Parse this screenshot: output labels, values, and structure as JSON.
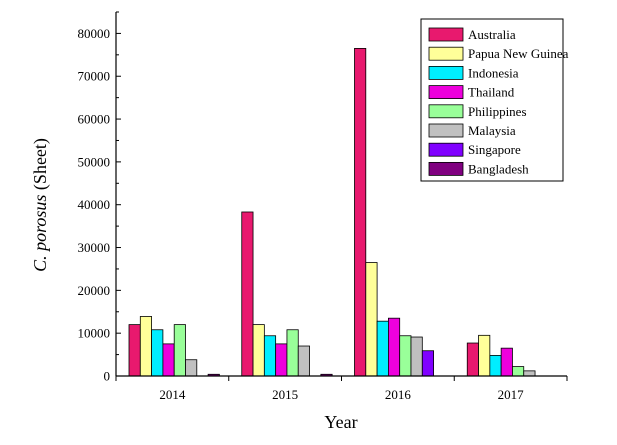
{
  "chart_data": {
    "type": "bar",
    "title": "",
    "xlabel": "Year",
    "ylabel_italic": "C. porosus",
    "ylabel_rest": " (Sheet)",
    "categories": [
      "2014",
      "2015",
      "2016",
      "2017"
    ],
    "ylim": [
      0,
      85000
    ],
    "yticks": [
      0,
      10000,
      20000,
      30000,
      40000,
      50000,
      60000,
      70000,
      80000
    ],
    "ytick_labels": [
      "0",
      "10000",
      "20000",
      "30000",
      "40000",
      "50000",
      "60000",
      "70000",
      "80000"
    ],
    "grid": false,
    "legend_position": "top-right",
    "series": [
      {
        "name": "Australia",
        "color": "#e8196e",
        "values": [
          12000,
          38300,
          76500,
          7700
        ]
      },
      {
        "name": "Papua New Guinea",
        "color": "#ffff99",
        "values": [
          13900,
          12000,
          26500,
          9500
        ]
      },
      {
        "name": "Indonesia",
        "color": "#00eeff",
        "values": [
          10800,
          9400,
          12800,
          4800
        ]
      },
      {
        "name": "Thailand",
        "color": "#ee00dd",
        "values": [
          7500,
          7500,
          13500,
          6500
        ]
      },
      {
        "name": "Philippines",
        "color": "#99ff99",
        "values": [
          12000,
          10800,
          9400,
          2200
        ]
      },
      {
        "name": "Malaysia",
        "color": "#c0c0c0",
        "values": [
          3800,
          7000,
          9100,
          1200
        ]
      },
      {
        "name": "Singapore",
        "color": "#8000ff",
        "values": [
          0,
          0,
          5900,
          0
        ]
      },
      {
        "name": "Bangladesh",
        "color": "#800080",
        "values": [
          400,
          400,
          0,
          0
        ]
      }
    ]
  }
}
